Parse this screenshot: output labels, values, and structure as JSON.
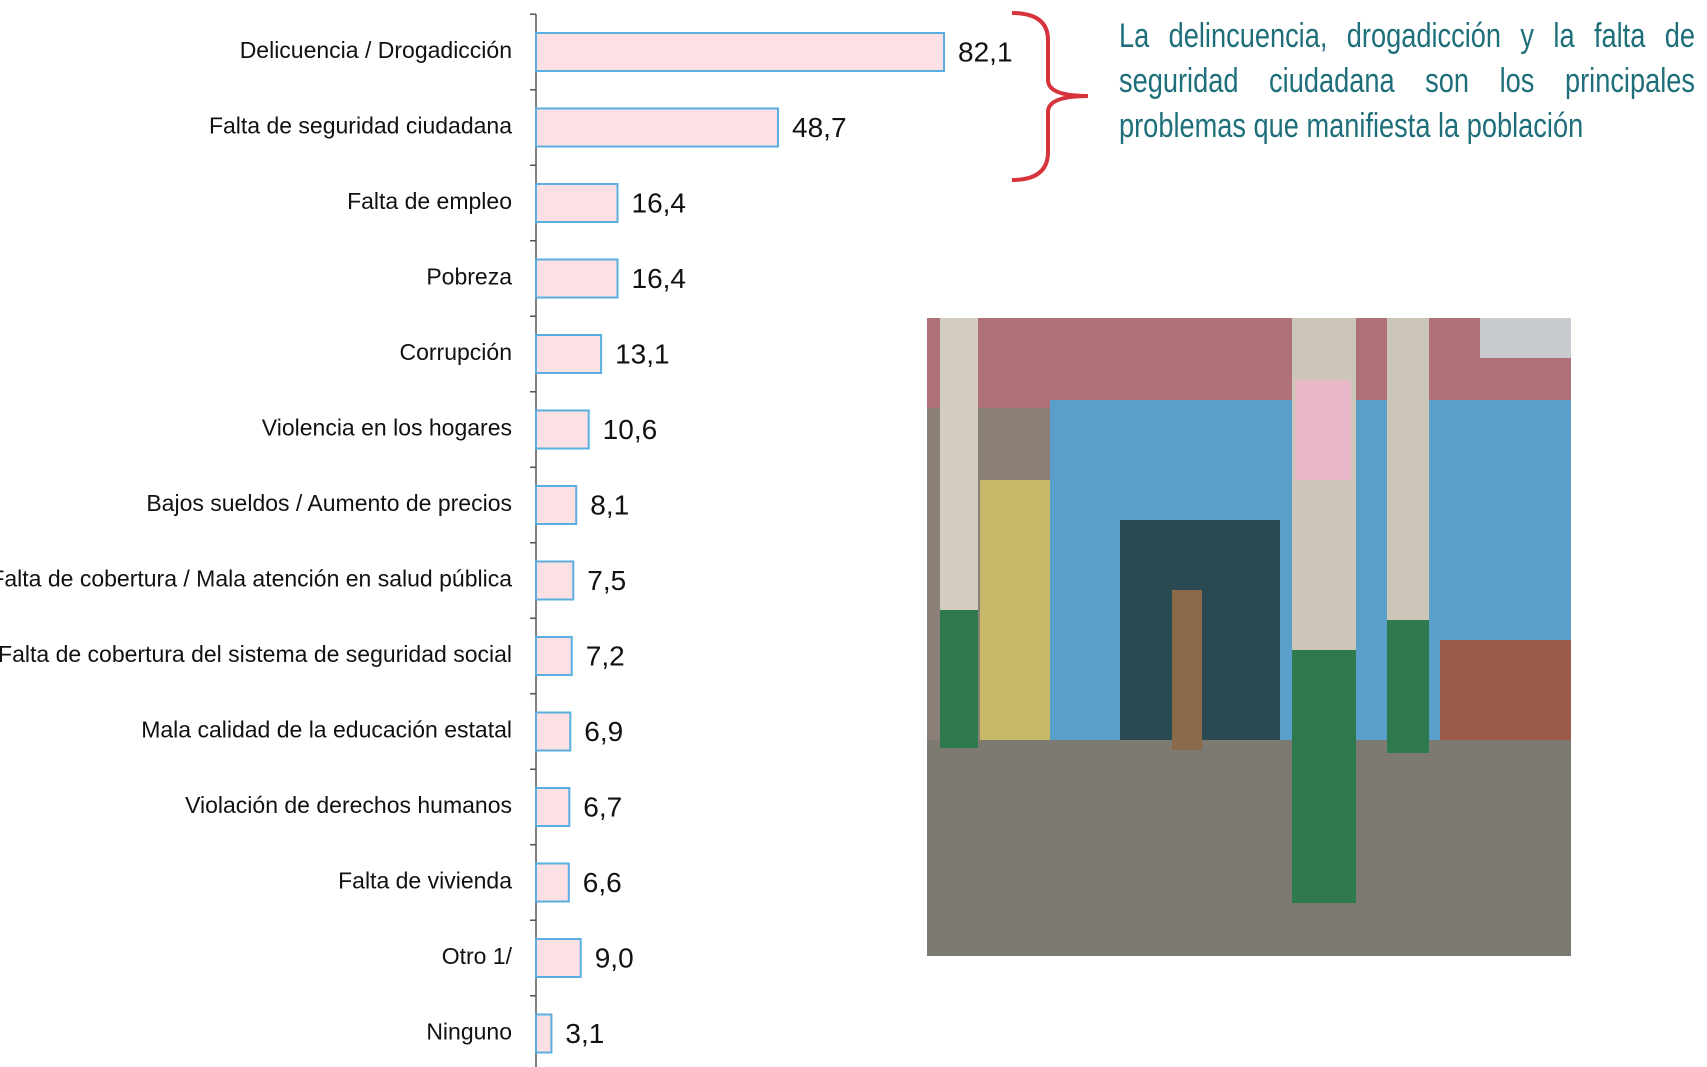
{
  "chart_data": {
    "type": "barh",
    "categories": [
      "Delicuencia / Drogadicción",
      "Falta de seguridad ciudadana",
      "Falta de empleo",
      "Pobreza",
      "Corrupción",
      "Violencia en los hogares",
      "Bajos sueldos / Aumento de precios",
      "Falta de cobertura / Mala atención en salud pública",
      "Falta de cobertura del sistema de seguridad social",
      "Mala calidad de la educación estatal",
      "Violación de derechos humanos",
      "Falta de vivienda",
      "Otro 1/",
      "Ninguno"
    ],
    "values": [
      82.1,
      48.7,
      16.4,
      16.4,
      13.1,
      10.6,
      8.1,
      7.5,
      7.2,
      6.9,
      6.7,
      6.6,
      9.0,
      3.1
    ],
    "value_labels": [
      "82,1",
      "48,7",
      "16,4",
      "16,4",
      "13,1",
      "10,6",
      "8,1",
      "7,5",
      "7,2",
      "6,9",
      "6,7",
      "6,6",
      "9,0",
      "3,1"
    ],
    "color": "#fde0e4",
    "edge_color": "#5aaee0",
    "xlim": [
      0,
      100
    ],
    "annotation": "La delincuencia, drogadicción y la falta de seguridad ciudadana son los principales problemas que manifiesta la población"
  }
}
